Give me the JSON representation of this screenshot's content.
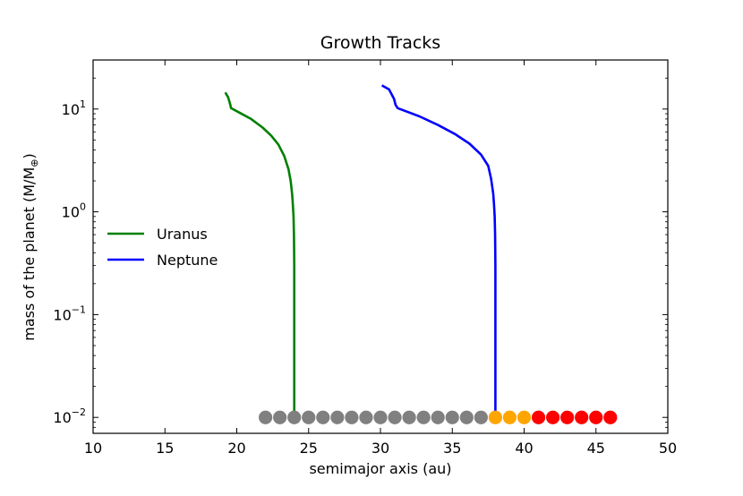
{
  "chart_data": {
    "type": "line",
    "title": "Growth Tracks",
    "xlabel": "semimajor axis (au)",
    "ylabel": "mass of the planet (M/M",
    "ylabel_sub": "⊕",
    "ylabel_close": ")",
    "xlim": [
      10,
      50
    ],
    "ylim": [
      0.007,
      30
    ],
    "yscale": "log",
    "grid": false,
    "legend": "center-left",
    "x_ticks": [
      10,
      15,
      20,
      25,
      30,
      35,
      40,
      45,
      50
    ],
    "x_tick_labels": [
      "10",
      "15",
      "20",
      "25",
      "30",
      "35",
      "40",
      "45",
      "50"
    ],
    "y_ticks": [
      {
        "value": 0.01,
        "base": "10",
        "exp": "−2"
      },
      {
        "value": 0.1,
        "base": "10",
        "exp": "−1"
      },
      {
        "value": 1,
        "base": "10",
        "exp": "0"
      },
      {
        "value": 10,
        "base": "10",
        "exp": "1"
      }
    ],
    "series": [
      {
        "name": "Uranus",
        "color": "#008000",
        "x": [
          24.0,
          24.0,
          24.0,
          23.98,
          23.95,
          23.9,
          23.85,
          23.75,
          23.6,
          23.3,
          22.9,
          22.4,
          21.8,
          21.0,
          20.2,
          19.6,
          19.55,
          19.4,
          19.2
        ],
        "y": [
          0.01,
          0.05,
          0.3,
          0.6,
          0.9,
          1.2,
          1.5,
          2.0,
          2.6,
          3.5,
          4.5,
          5.5,
          6.6,
          8.0,
          9.2,
          10.2,
          11.0,
          13.0,
          14.5
        ]
      },
      {
        "name": "Neptune",
        "color": "#0000ff",
        "x": [
          38.0,
          38.0,
          38.0,
          37.98,
          37.95,
          37.9,
          37.85,
          37.7,
          37.5,
          37.0,
          36.2,
          35.2,
          34.0,
          32.7,
          31.2,
          31.05,
          30.95,
          30.6,
          30.1
        ],
        "y": [
          0.01,
          0.05,
          0.3,
          0.6,
          0.9,
          1.2,
          1.5,
          2.1,
          2.8,
          3.6,
          4.6,
          5.7,
          7.0,
          8.5,
          10.2,
          11.0,
          12.5,
          15.5,
          17.0
        ]
      }
    ],
    "markers": {
      "y": 0.01,
      "groups": [
        {
          "color": "#808080",
          "x": [
            22,
            23,
            24,
            25,
            26,
            27,
            28,
            29,
            30,
            31,
            32,
            33,
            34,
            35,
            36,
            37
          ]
        },
        {
          "color": "#ffa500",
          "x": [
            38,
            39,
            40
          ]
        },
        {
          "color": "#ff0000",
          "x": [
            41,
            42,
            43,
            44,
            45,
            46
          ]
        }
      ]
    }
  }
}
